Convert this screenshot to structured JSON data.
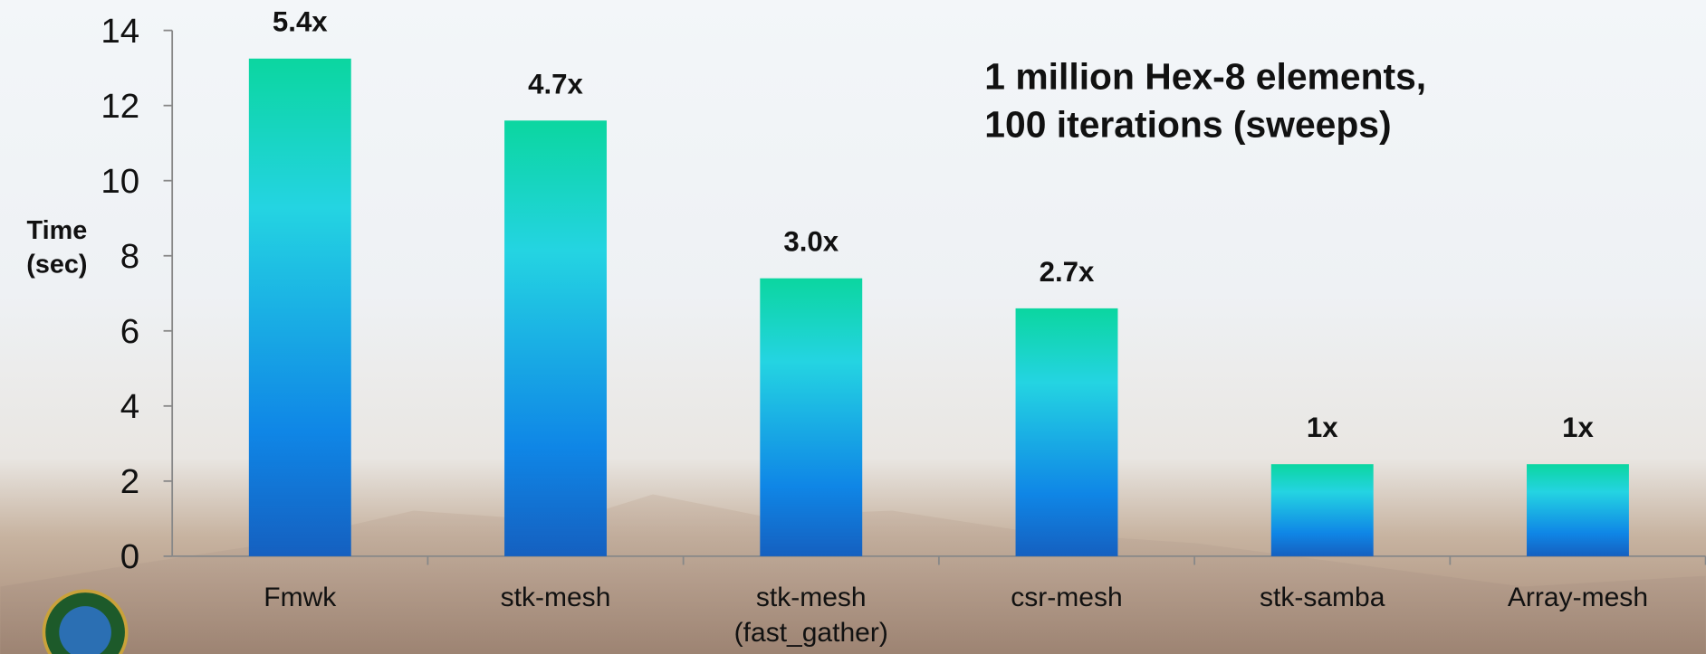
{
  "chart_data": {
    "type": "bar",
    "annotation": "1 million Hex-8 elements,\n100 iterations (sweeps)",
    "ylabel": "Time\n(sec)",
    "categories": [
      "Fmwk",
      "stk-mesh",
      "stk-mesh\n(fast_gather)",
      "csr-mesh",
      "stk-samba",
      "Array-mesh"
    ],
    "values": [
      13.25,
      11.6,
      7.4,
      6.6,
      2.45,
      2.45
    ],
    "bar_labels": [
      "5.4x",
      "4.7x",
      "3.0x",
      "2.7x",
      "1x",
      "1x"
    ],
    "colors": [
      "#0bd6a0",
      "#24d4e2",
      "#0f86e6",
      "#1560c0"
    ],
    "ylim": [
      0,
      14
    ],
    "yticks": [
      0,
      2,
      4,
      6,
      8,
      10,
      12,
      14
    ]
  }
}
